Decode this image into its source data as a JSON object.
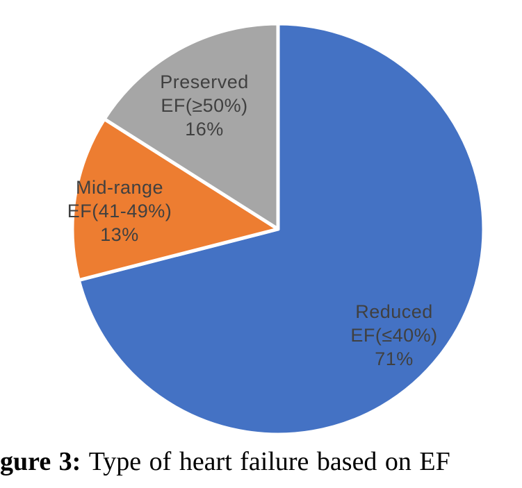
{
  "chart_data": {
    "type": "pie",
    "title": "",
    "start_angle_deg": 0,
    "direction": "clockwise",
    "legend": "none",
    "label_style": "inside: category name, EF range, percentage",
    "separator_color": "#ffffff",
    "label_text_color": "#404040",
    "categories": [
      "Reduced EF(≤40%)",
      "Mid-range EF(41-49%)",
      "Preserved EF(≥50%)"
    ],
    "values": [
      71,
      13,
      16
    ],
    "slices": [
      {
        "label": "Reduced EF(≤40%)",
        "value": 71,
        "color": "#4472C4",
        "display": [
          "Reduced",
          "EF(≤40%)",
          "71%"
        ]
      },
      {
        "label": "Mid-range EF(41-49%)",
        "value": 13,
        "color": "#ED7D31",
        "display": [
          "Mid-range",
          "EF(41-49%)",
          "13%"
        ]
      },
      {
        "label": "Preserved EF(≥50%)",
        "value": 16,
        "color": "#A6A6A6",
        "display": [
          "Preserved",
          "EF(≥50%)",
          "16%"
        ]
      }
    ]
  },
  "caption": {
    "bold": "gure 3:",
    "text": "Type of heart failure based on EF"
  }
}
